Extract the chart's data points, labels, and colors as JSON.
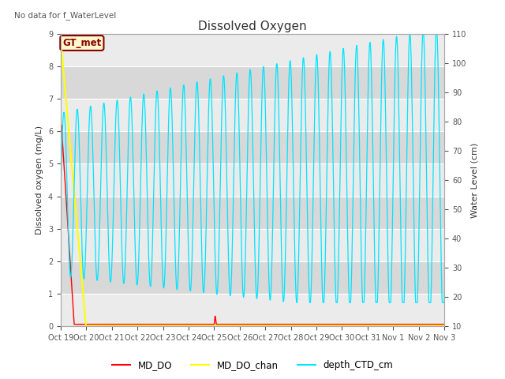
{
  "title": "Dissolved Oxygen",
  "top_left_text": "No data for f_WaterLevel",
  "ylabel_left": "Dissolved oxygen (mg/L)",
  "ylabel_right": "Water Level (cm)",
  "ylim_left": [
    0.0,
    9.0
  ],
  "ylim_right": [
    10,
    110
  ],
  "annotation_box": "GT_met",
  "background_color": "#ffffff",
  "plot_bg_color": "#d8d8d8",
  "legend_labels": [
    "MD_DO",
    "MD_DO_chan",
    "depth_CTD_cm"
  ],
  "legend_colors": [
    "#ff0000",
    "#ffff00",
    "#00e5ff"
  ],
  "x_tick_labels": [
    "Oct 19",
    "Oct 20",
    "Oct 21",
    "Oct 22",
    "Oct 23",
    "Oct 24",
    "Oct 25",
    "Oct 26",
    "Oct 27",
    "Oct 28",
    "Oct 29",
    "Oct 30",
    "Oct 31",
    "Nov 1",
    "Nov 2",
    "Nov 3"
  ],
  "yticks_left": [
    0.0,
    1.0,
    2.0,
    3.0,
    4.0,
    5.0,
    6.0,
    7.0,
    8.0,
    9.0
  ],
  "yticks_right": [
    10,
    20,
    30,
    40,
    50,
    60,
    70,
    80,
    90,
    100,
    110
  ]
}
